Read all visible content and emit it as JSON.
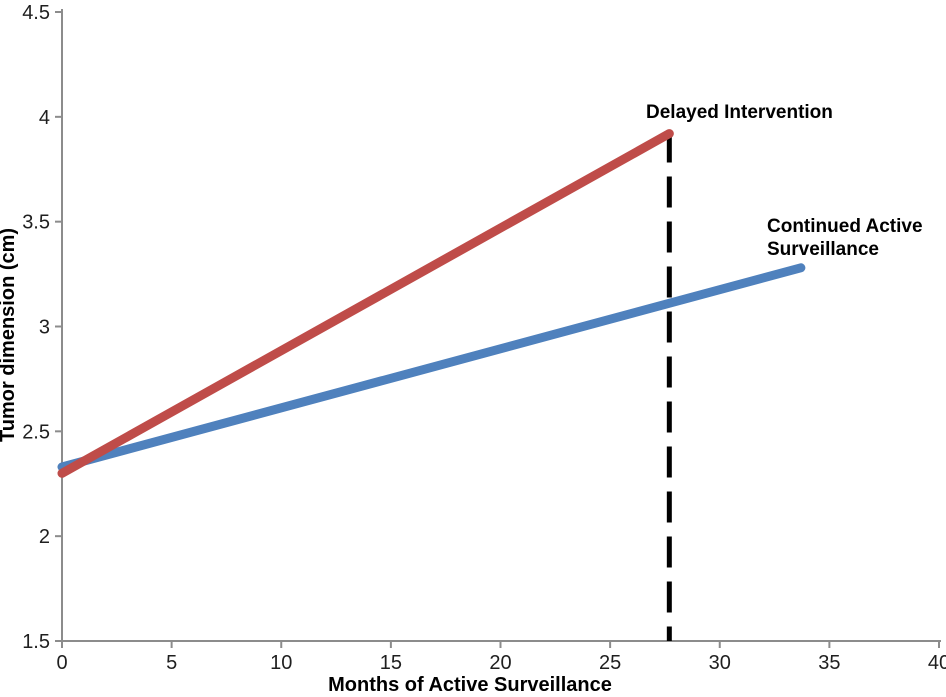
{
  "chart_data": {
    "type": "line",
    "title": "",
    "xlabel": "Months of Active Surveillance",
    "ylabel": "Tumor dimension (cm)",
    "xlim": [
      0,
      40
    ],
    "ylim": [
      1.5,
      4.5
    ],
    "xticks": [
      "0",
      "5",
      "10",
      "15",
      "20",
      "25",
      "30",
      "35",
      "40"
    ],
    "yticks": [
      "1.5",
      "2",
      "2.5",
      "3",
      "3.5",
      "4",
      "4.5"
    ],
    "grid": false,
    "legend": "inline-annotations",
    "axis_color": "#8c8c8c",
    "tick_label_color": "#1f1f1f",
    "series": [
      {
        "name": "Delayed Intervention",
        "label": "Delayed Intervention",
        "color": "#bf4c49",
        "x": [
          0,
          27.7
        ],
        "y": [
          2.3,
          3.92
        ]
      },
      {
        "name": "Continued Active Surveillance",
        "label_line1": "Continued Active",
        "label_line2": "Surveillance",
        "color": "#4f81bd",
        "x": [
          0,
          33.7
        ],
        "y": [
          2.33,
          3.28
        ]
      }
    ],
    "reference_line": {
      "style": "vertical-dashed",
      "color": "#000000",
      "x": 27.7,
      "y_from": 1.5,
      "y_to": 3.93
    }
  }
}
